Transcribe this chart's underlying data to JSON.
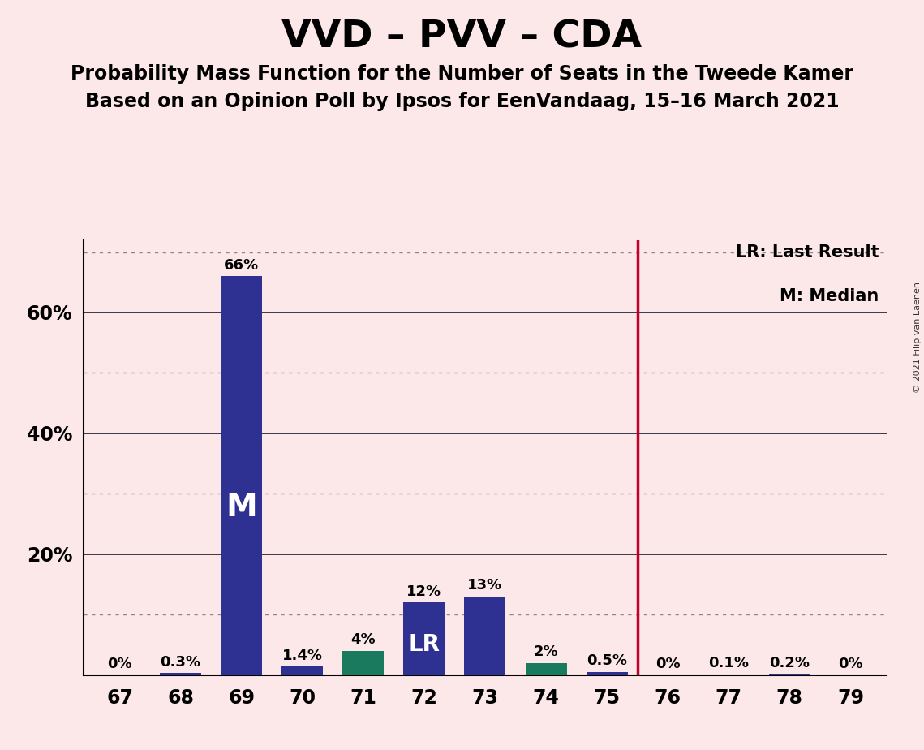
{
  "title": "VVD – PVV – CDA",
  "subtitle1": "Probability Mass Function for the Number of Seats in the Tweede Kamer",
  "subtitle2": "Based on an Opinion Poll by Ipsos for EenVandaag, 15–16 March 2021",
  "copyright_text": "© 2021 Filip van Laenen",
  "categories": [
    67,
    68,
    69,
    70,
    71,
    72,
    73,
    74,
    75,
    76,
    77,
    78,
    79
  ],
  "values": [
    0.0,
    0.3,
    66.0,
    1.4,
    4.0,
    12.0,
    13.0,
    2.0,
    0.5,
    0.0,
    0.1,
    0.2,
    0.0
  ],
  "labels": [
    "0%",
    "0.3%",
    "66%",
    "1.4%",
    "4%",
    "12%",
    "13%",
    "2%",
    "0.5%",
    "0%",
    "0.1%",
    "0.2%",
    "0%"
  ],
  "bar_colors": [
    "#2e3192",
    "#2e3192",
    "#2e3192",
    "#2e3192",
    "#1a7a5e",
    "#2e3192",
    "#2e3192",
    "#1a7a5e",
    "#2e3192",
    "#2e3192",
    "#2e3192",
    "#2e3192",
    "#2e3192"
  ],
  "median_bar_index": 2,
  "lr_bar_index": 5,
  "median_label": "M",
  "lr_label": "LR",
  "legend_lr": "LR: Last Result",
  "legend_m": "M: Median",
  "background_color": "#fce8e8",
  "bar_color_navy": "#2e3192",
  "bar_color_teal": "#1a7a5e",
  "vline_color": "#c0002a",
  "solid_grid_color": "#1a1a2e",
  "dotted_grid_color": "#888888",
  "ylim": [
    0,
    72
  ],
  "solid_yticks": [
    20,
    40,
    60
  ],
  "dotted_yticks": [
    10,
    30,
    50,
    70
  ],
  "title_fontsize": 34,
  "subtitle_fontsize": 17,
  "label_fontsize": 13,
  "tick_fontsize": 17,
  "legend_fontsize": 15,
  "median_label_fontsize": 28,
  "lr_label_fontsize": 20
}
